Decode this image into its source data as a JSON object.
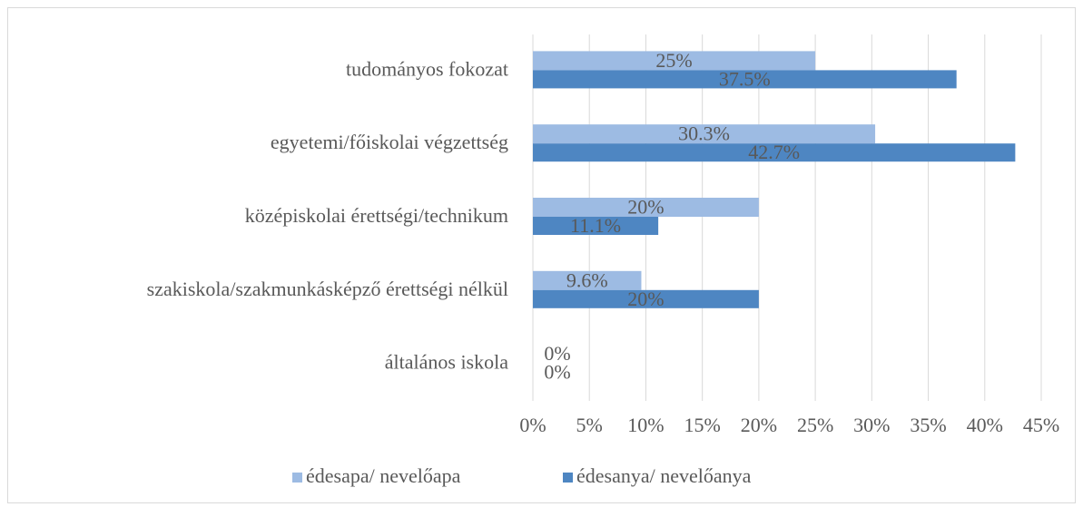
{
  "chart_data": {
    "type": "bar",
    "orientation": "horizontal",
    "categories": [
      "tudományos fokozat",
      "egyetemi/főiskolai végzettség",
      "középiskolai érettségi/technikum",
      "szakiskola/szakmunkásképző érettségi nélkül",
      "általános iskola"
    ],
    "series": [
      {
        "name": "édesapa/ nevelőapa",
        "color": "#9dbbe3",
        "values": [
          25,
          30.3,
          20,
          9.6,
          0
        ],
        "value_labels": [
          "25%",
          "30.3%",
          "20%",
          "9.6%",
          "0%"
        ]
      },
      {
        "name": "édesanya/ nevelőanya",
        "color": "#4e86c2",
        "values": [
          37.5,
          42.7,
          11.1,
          20,
          0
        ],
        "value_labels": [
          "37.5%",
          "42.7%",
          "11.1%",
          "20%",
          "0%"
        ]
      }
    ],
    "xlim": [
      0,
      45
    ],
    "xticks": [
      {
        "value": 0,
        "label": "0%"
      },
      {
        "value": 5,
        "label": "5%"
      },
      {
        "value": 10,
        "label": "10%"
      },
      {
        "value": 15,
        "label": "15%"
      },
      {
        "value": 20,
        "label": "20%"
      },
      {
        "value": 25,
        "label": "25%"
      },
      {
        "value": 30,
        "label": "30%"
      },
      {
        "value": 35,
        "label": "35%"
      },
      {
        "value": 40,
        "label": "40%"
      },
      {
        "value": 45,
        "label": "45%"
      }
    ],
    "grid": true,
    "legend": "bottom"
  }
}
